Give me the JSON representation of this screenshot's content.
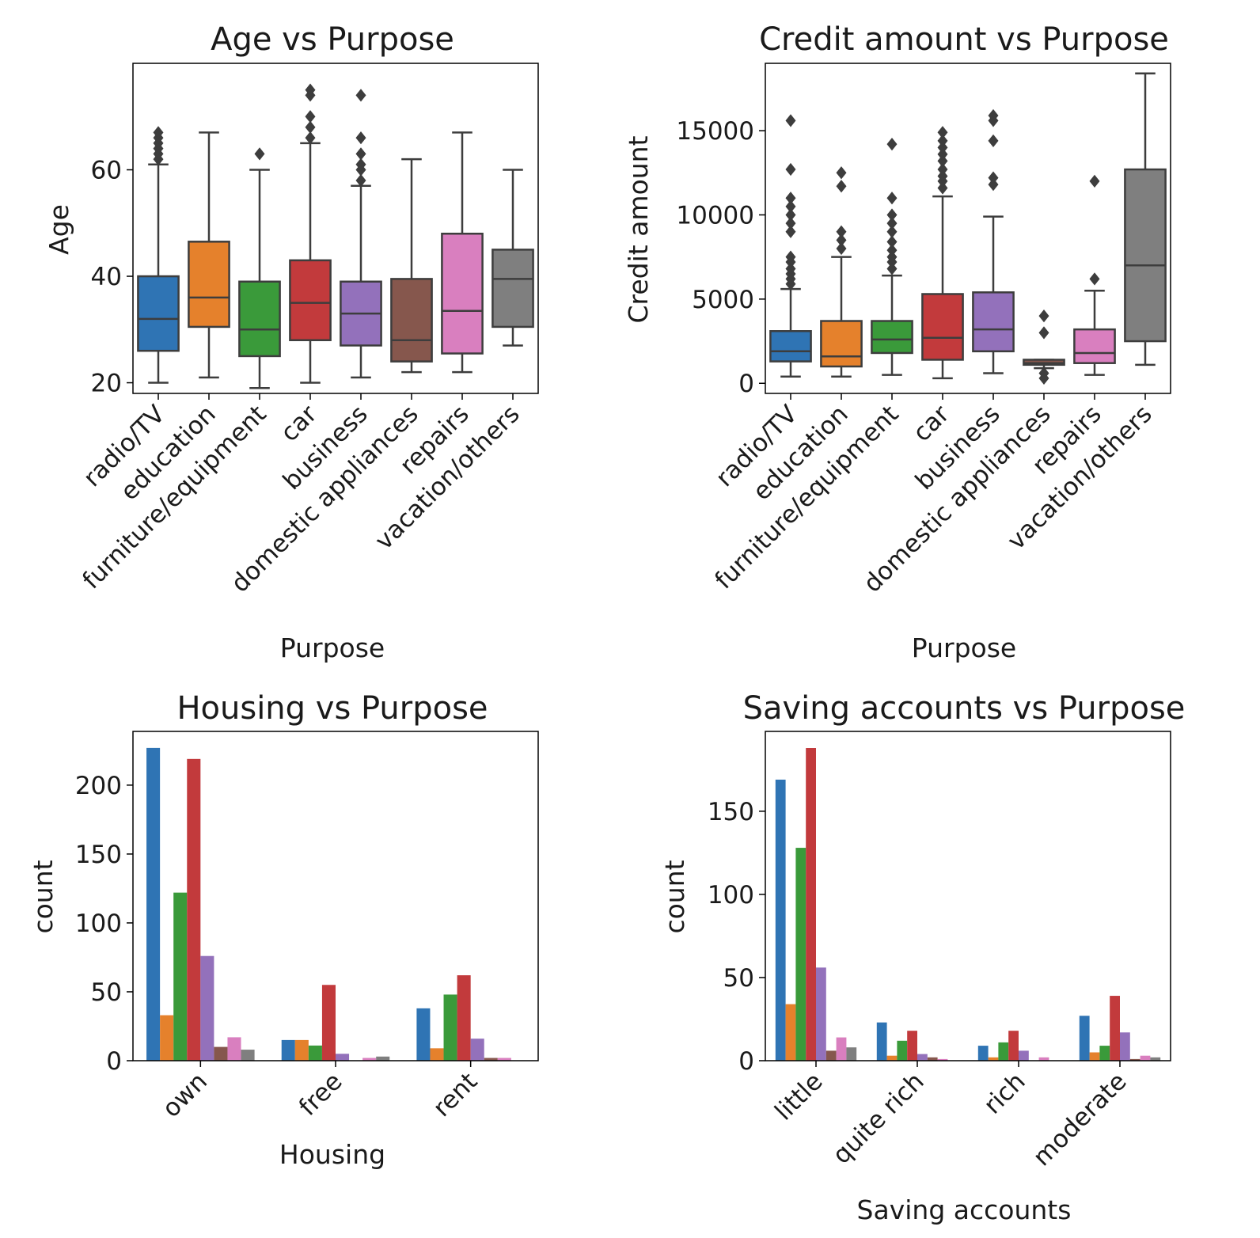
{
  "palette": [
    "#2f74b4",
    "#e5812c",
    "#3a9a3a",
    "#c23a3c",
    "#9371bb",
    "#86574d",
    "#d97fbf",
    "#7f7f7f"
  ],
  "chart_data": [
    {
      "type": "boxplot",
      "title": "Age vs Purpose",
      "xlabel": "Purpose",
      "ylabel": "Age",
      "ylim": [
        18,
        80
      ],
      "yticks": [
        20,
        40,
        60
      ],
      "categories": [
        "radio/TV",
        "education",
        "furniture/equipment",
        "car",
        "business",
        "domestic appliances",
        "repairs",
        "vacation/others"
      ],
      "boxes": [
        {
          "min": 20,
          "q1": 26,
          "median": 32,
          "q3": 40,
          "max": 61,
          "fliers": [
            62,
            63,
            64,
            65,
            66,
            67
          ]
        },
        {
          "min": 21,
          "q1": 30.5,
          "median": 36,
          "q3": 46.5,
          "max": 67,
          "fliers": []
        },
        {
          "min": 19,
          "q1": 25,
          "median": 30,
          "q3": 39,
          "max": 60,
          "fliers": [
            63
          ]
        },
        {
          "min": 20,
          "q1": 28,
          "median": 35,
          "q3": 43,
          "max": 65,
          "fliers": [
            66,
            68,
            70,
            74,
            75
          ]
        },
        {
          "min": 21,
          "q1": 27,
          "median": 33,
          "q3": 39,
          "max": 57,
          "fliers": [
            58,
            60,
            61,
            63,
            66,
            74
          ]
        },
        {
          "min": 22,
          "q1": 24,
          "median": 28,
          "q3": 39.5,
          "max": 62,
          "fliers": []
        },
        {
          "min": 22,
          "q1": 25.5,
          "median": 33.5,
          "q3": 48,
          "max": 67,
          "fliers": []
        },
        {
          "min": 27,
          "q1": 30.5,
          "median": 39.5,
          "q3": 45,
          "max": 60,
          "fliers": []
        }
      ]
    },
    {
      "type": "boxplot",
      "title": "Credit amount vs Purpose",
      "xlabel": "Purpose",
      "ylabel": "Credit amount",
      "ylim": [
        -600,
        19000
      ],
      "yticks": [
        0,
        5000,
        10000,
        15000
      ],
      "categories": [
        "radio/TV",
        "education",
        "furniture/equipment",
        "car",
        "business",
        "domestic appliances",
        "repairs",
        "vacation/others"
      ],
      "boxes": [
        {
          "min": 400,
          "q1": 1300,
          "median": 1900,
          "q3": 3100,
          "max": 5600,
          "fliers": [
            5900,
            6200,
            6500,
            6800,
            7200,
            7500,
            9000,
            9500,
            10000,
            10500,
            11000,
            12700,
            15600
          ]
        },
        {
          "min": 400,
          "q1": 1000,
          "median": 1600,
          "q3": 3700,
          "max": 7500,
          "fliers": [
            8000,
            8500,
            9000,
            11700,
            12500
          ]
        },
        {
          "min": 500,
          "q1": 1800,
          "median": 2600,
          "q3": 3700,
          "max": 6400,
          "fliers": [
            6800,
            7200,
            7500,
            7900,
            8400,
            9000,
            9500,
            10000,
            11000,
            14200
          ]
        },
        {
          "min": 300,
          "q1": 1400,
          "median": 2700,
          "q3": 5300,
          "max": 11100,
          "fliers": [
            11600,
            12000,
            12300,
            12700,
            13200,
            13600,
            14000,
            14400,
            14900
          ]
        },
        {
          "min": 600,
          "q1": 1900,
          "median": 3200,
          "q3": 5400,
          "max": 9900,
          "fliers": [
            11800,
            12200,
            14400,
            15600,
            15900
          ]
        },
        {
          "min": 900,
          "q1": 1100,
          "median": 1200,
          "q3": 1400,
          "max": 1400,
          "fliers": [
            300,
            600,
            3000,
            4000
          ]
        },
        {
          "min": 500,
          "q1": 1200,
          "median": 1800,
          "q3": 3200,
          "max": 5500,
          "fliers": [
            6200,
            12000
          ]
        },
        {
          "min": 1100,
          "q1": 2500,
          "median": 7000,
          "q3": 12700,
          "max": 18400,
          "fliers": []
        }
      ]
    },
    {
      "type": "bar",
      "title": "Housing vs Purpose",
      "xlabel": "Housing",
      "ylabel": "count",
      "ylim": [
        0,
        239
      ],
      "yticks": [
        0,
        50,
        100,
        150,
        200
      ],
      "categories": [
        "own",
        "free",
        "rent"
      ],
      "series": [
        {
          "values": [
            227,
            15,
            38
          ]
        },
        {
          "values": [
            33,
            15,
            9
          ]
        },
        {
          "values": [
            122,
            11,
            48
          ]
        },
        {
          "values": [
            219,
            55,
            62
          ]
        },
        {
          "values": [
            76,
            5,
            16
          ]
        },
        {
          "values": [
            10,
            0,
            2
          ]
        },
        {
          "values": [
            17,
            2,
            2
          ]
        },
        {
          "values": [
            8,
            3,
            0
          ]
        }
      ]
    },
    {
      "type": "bar",
      "title": "Saving accounts vs Purpose",
      "xlabel": "Saving accounts",
      "ylabel": "count",
      "ylim": [
        0,
        198
      ],
      "yticks": [
        0,
        50,
        100,
        150
      ],
      "categories": [
        "little",
        "quite rich",
        "rich",
        "moderate"
      ],
      "series": [
        {
          "values": [
            169,
            23,
            9,
            27
          ]
        },
        {
          "values": [
            34,
            3,
            2,
            5
          ]
        },
        {
          "values": [
            128,
            12,
            11,
            9
          ]
        },
        {
          "values": [
            188,
            18,
            18,
            39
          ]
        },
        {
          "values": [
            56,
            4,
            6,
            17
          ]
        },
        {
          "values": [
            6,
            2,
            0,
            1
          ]
        },
        {
          "values": [
            14,
            1,
            2,
            3
          ]
        },
        {
          "values": [
            8,
            0,
            0,
            2
          ]
        }
      ]
    }
  ]
}
